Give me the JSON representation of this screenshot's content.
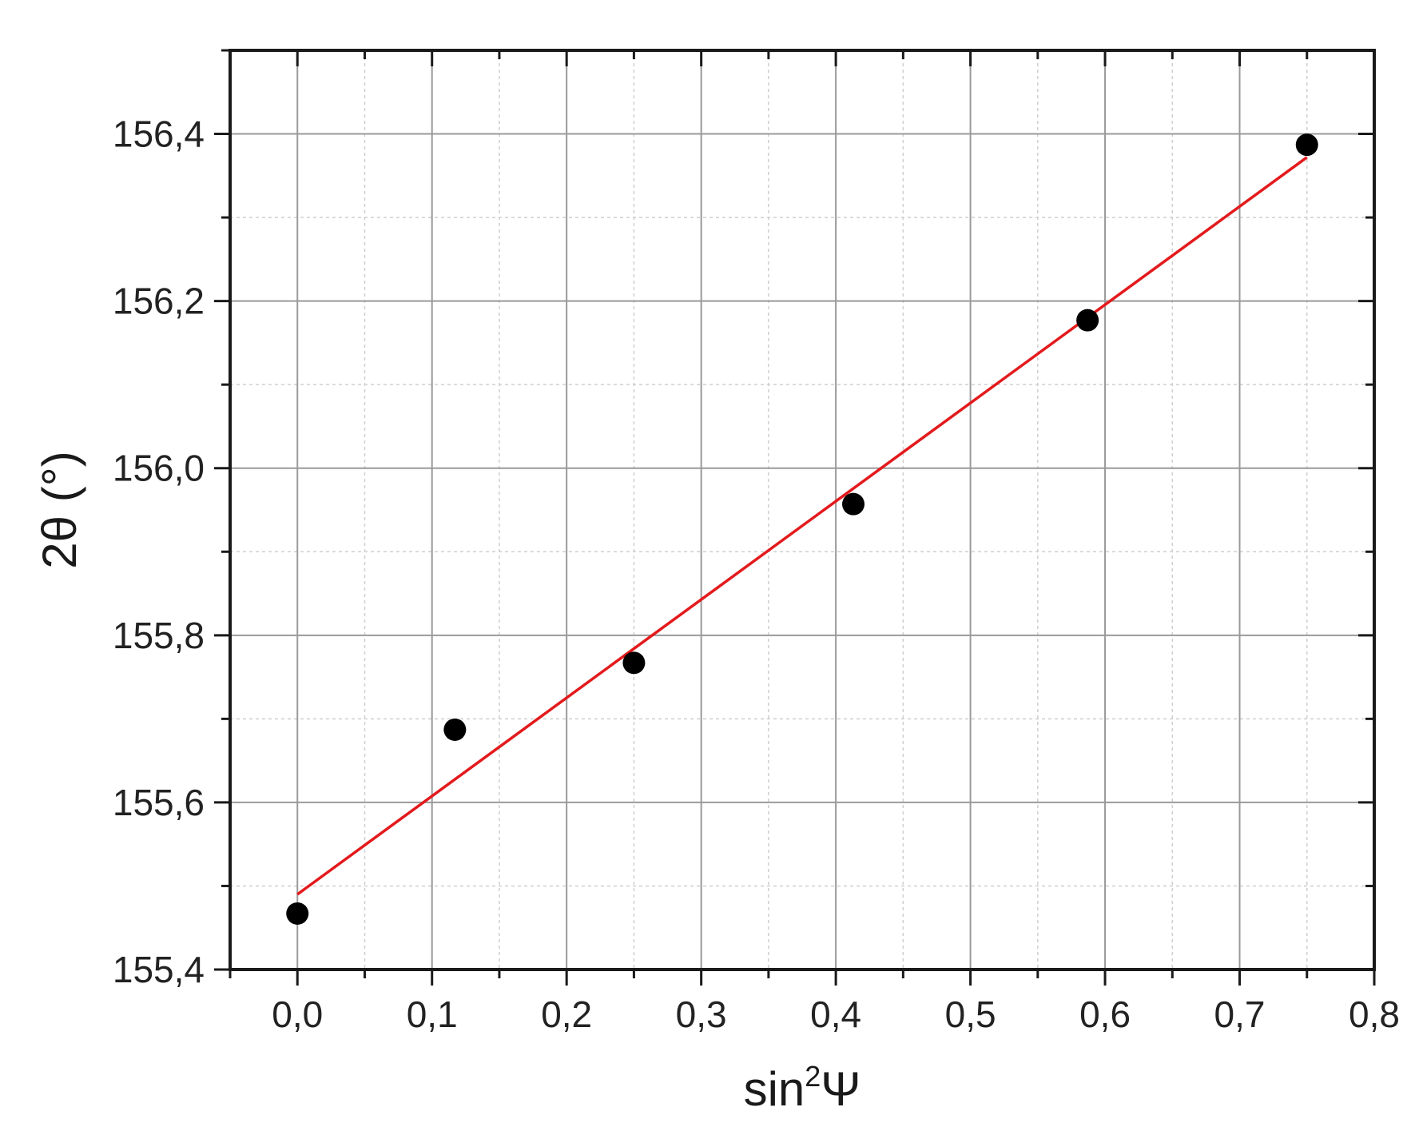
{
  "chart_data": {
    "type": "scatter",
    "xlabel": {
      "base": "sin",
      "sup": "2",
      "symbol": "Ψ"
    },
    "ylabel": "2θ (°)",
    "xlim": [
      -0.05,
      0.8
    ],
    "ylim": [
      155.4,
      156.5
    ],
    "x_ticks": [
      "0,0",
      "0,1",
      "0,2",
      "0,3",
      "0,4",
      "0,5",
      "0,6",
      "0,7",
      "0,8"
    ],
    "y_ticks": [
      "155,4",
      "155,6",
      "155,8",
      "156,0",
      "156,2",
      "156,4"
    ],
    "x_tick_values": [
      0.0,
      0.1,
      0.2,
      0.3,
      0.4,
      0.5,
      0.6,
      0.7,
      0.8
    ],
    "y_tick_values": [
      155.4,
      155.6,
      155.8,
      156.0,
      156.2,
      156.4
    ],
    "grid": true,
    "series": [
      {
        "type": "scatter",
        "color": "#000000",
        "points": [
          {
            "x": 0.0,
            "y": 155.467
          },
          {
            "x": 0.117,
            "y": 155.687
          },
          {
            "x": 0.25,
            "y": 155.767
          },
          {
            "x": 0.413,
            "y": 155.957
          },
          {
            "x": 0.587,
            "y": 156.177
          },
          {
            "x": 0.75,
            "y": 156.387
          }
        ]
      },
      {
        "type": "line",
        "color": "#e31a1c",
        "points": [
          {
            "x": 0.0,
            "y": 155.49
          },
          {
            "x": 0.75,
            "y": 156.372
          }
        ]
      }
    ]
  }
}
